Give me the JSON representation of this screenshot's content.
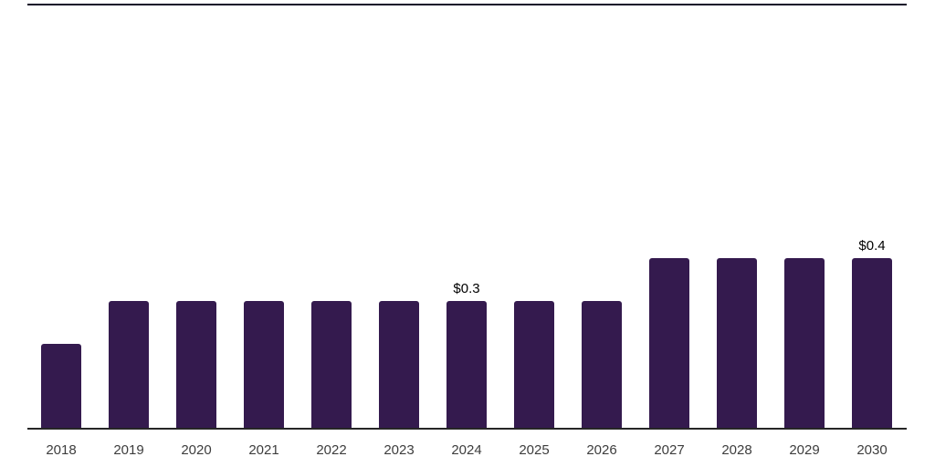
{
  "chart_data": {
    "type": "bar",
    "title": "",
    "xlabel": "",
    "ylabel": "",
    "categories": [
      "2018",
      "2019",
      "2020",
      "2021",
      "2022",
      "2023",
      "2024",
      "2025",
      "2026",
      "2027",
      "2028",
      "2029",
      "2030"
    ],
    "values": [
      0.2,
      0.3,
      0.3,
      0.3,
      0.3,
      0.3,
      0.3,
      0.3,
      0.3,
      0.4,
      0.4,
      0.4,
      0.4
    ],
    "data_labels": {
      "2024": "$0.3",
      "2030": "$0.4"
    },
    "ylim": [
      0,
      1.0
    ],
    "grid": false,
    "legend": false,
    "colors": {
      "bar": "#341A4E",
      "axis_line": "#262626",
      "top_rule": "#14102A",
      "tick_label": "#3D3D3D",
      "data_label": "#000000"
    }
  }
}
